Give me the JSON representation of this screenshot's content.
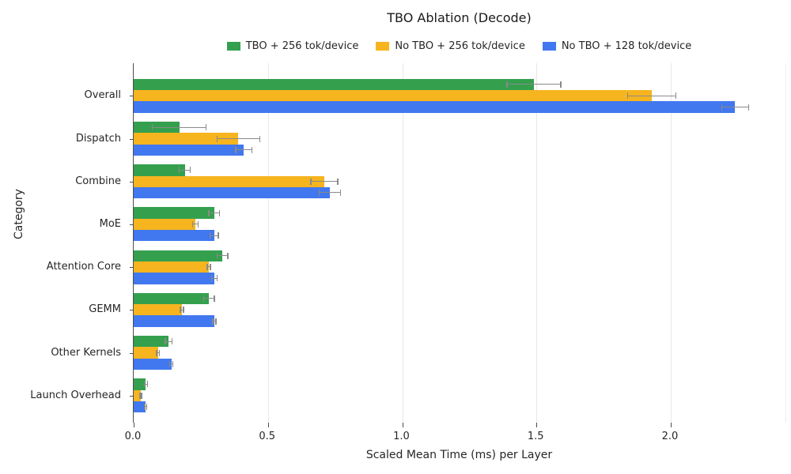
{
  "chart_data": {
    "type": "bar",
    "orientation": "horizontal",
    "title": "TBO Ablation (Decode)",
    "xlabel": "Scaled Mean Time (ms) per Layer",
    "ylabel": "Category",
    "categories": [
      "Overall",
      "Dispatch",
      "Combine",
      "MoE",
      "Attention Core",
      "GEMM",
      "Other Kernels",
      "Launch Overhead"
    ],
    "xlim": [
      0,
      2.43
    ],
    "xticks": [
      0.0,
      0.5,
      1.0,
      1.5,
      2.0
    ],
    "xtick_labels": [
      "0.0",
      "0.5",
      "1.0",
      "1.5",
      "2.0"
    ],
    "grid": true,
    "legend_position": "top-center",
    "error_bar_color": "#8a8a8a",
    "series": [
      {
        "name": "TBO + 256 tok/device",
        "color": "#34a04e",
        "values": [
          1.49,
          0.17,
          0.19,
          0.3,
          0.33,
          0.28,
          0.13,
          0.045
        ],
        "errors": [
          0.1,
          0.1,
          0.02,
          0.02,
          0.02,
          0.02,
          0.012,
          0.006
        ]
      },
      {
        "name": "No TBO + 256 tok/device",
        "color": "#f6b41e",
        "values": [
          1.93,
          0.39,
          0.71,
          0.23,
          0.28,
          0.18,
          0.09,
          0.027
        ],
        "errors": [
          0.09,
          0.08,
          0.05,
          0.01,
          0.006,
          0.006,
          0.005,
          0.003
        ]
      },
      {
        "name": "No TBO + 128 tok/device",
        "color": "#4178ef",
        "values": [
          2.24,
          0.41,
          0.73,
          0.3,
          0.3,
          0.3,
          0.14,
          0.045
        ],
        "errors": [
          0.05,
          0.03,
          0.04,
          0.015,
          0.01,
          0.006,
          0.006,
          0.004
        ]
      }
    ]
  }
}
